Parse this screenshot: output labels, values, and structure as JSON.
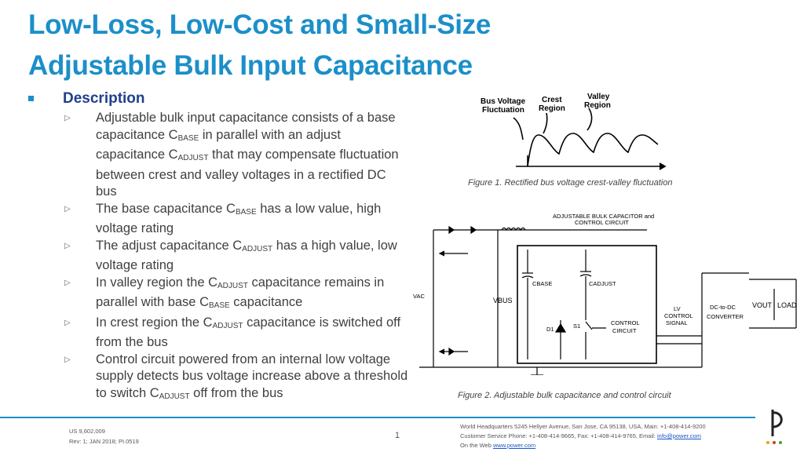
{
  "title": {
    "line1": "Low-Loss, Low-Cost  and Small-Size",
    "line2": "Adjustable Bulk Input Capacitance"
  },
  "description": {
    "heading": "Description",
    "items": [
      {
        "parts": [
          [
            "t",
            "Adjustable bulk input capacitance consists of a base capacitance C"
          ],
          [
            "s",
            "BASE"
          ],
          [
            "t",
            " in parallel with an adjust capacitance C"
          ],
          [
            "s",
            "ADJUST"
          ],
          [
            "t",
            " that may compensate fluctuation between crest and valley voltages in a rectified DC bus"
          ]
        ]
      },
      {
        "parts": [
          [
            "t",
            "The base capacitance C"
          ],
          [
            "s",
            "BASE"
          ],
          [
            "t",
            " has a low value, high voltage rating"
          ]
        ]
      },
      {
        "parts": [
          [
            "t",
            "The adjust capacitance C"
          ],
          [
            "s",
            "ADJUST"
          ],
          [
            "t",
            " has a high value, low voltage rating"
          ]
        ]
      },
      {
        "parts": [
          [
            "t",
            "In valley region the C"
          ],
          [
            "s",
            "ADJUST"
          ],
          [
            "t",
            " capacitance remains in parallel with base C"
          ],
          [
            "s",
            "BASE"
          ],
          [
            "t",
            " capacitance"
          ]
        ]
      },
      {
        "parts": [
          [
            "t",
            "In crest region the C"
          ],
          [
            "s",
            "ADJUST"
          ],
          [
            "t",
            " capacitance is switched off from the bus"
          ]
        ]
      },
      {
        "parts": [
          [
            "t",
            "Control circuit powered from an internal low voltage supply detects bus voltage increase above a threshold to switch C"
          ],
          [
            "s",
            "ADJUST"
          ],
          [
            "t",
            " off from the bus"
          ]
        ]
      }
    ]
  },
  "figure1": {
    "label_fluct": [
      "Bus Voltage",
      "Fluctuation"
    ],
    "label_crest": [
      "Crest",
      "Region"
    ],
    "label_valley": [
      "Valley",
      "Region"
    ],
    "caption": "Figure 1. Rectified bus voltage crest-valley fluctuation"
  },
  "figure2": {
    "block_title": [
      "ADJUSTABLE BULK CAPACITOR and",
      "CONTROL CIRCUIT"
    ],
    "vbus": "VBUS",
    "cbase": "CBASE",
    "cadjust": "CADJUST",
    "d1": "D1",
    "s1": "S1",
    "control": [
      "CONTROL",
      "CIRCUIT"
    ],
    "lv_signal": [
      "LV",
      "CONTROL",
      "SIGNAL"
    ],
    "converter": [
      "DC-to-DC",
      "CONVERTER"
    ],
    "vout": "VOUT",
    "load": "LOAD",
    "vac": "VAC",
    "caption": "Figure 2. Adjustable bulk capacitance and control circuit"
  },
  "footer": {
    "left_line1": "US 9,602,009",
    "left_line2": "Rev: 1; JAN 2018; PI.0519",
    "page": "1",
    "right_line1": "World Headquarters 5245 Hellyer Avenue, San Jose, CA 95138, USA, Main: +1-408-414-9200",
    "right_line2_prefix": "Customer Service Phone: +1-408-414-9665, Fax: +1-408-414-9765, Email: ",
    "right_line2_email": "info@power.com",
    "right_line3_prefix": "On the Web ",
    "right_line3_link": "www.power.com"
  },
  "colors": {
    "title": "#1b8fc9",
    "heading": "#1f3f8f",
    "rule": "#1b8fc9"
  }
}
